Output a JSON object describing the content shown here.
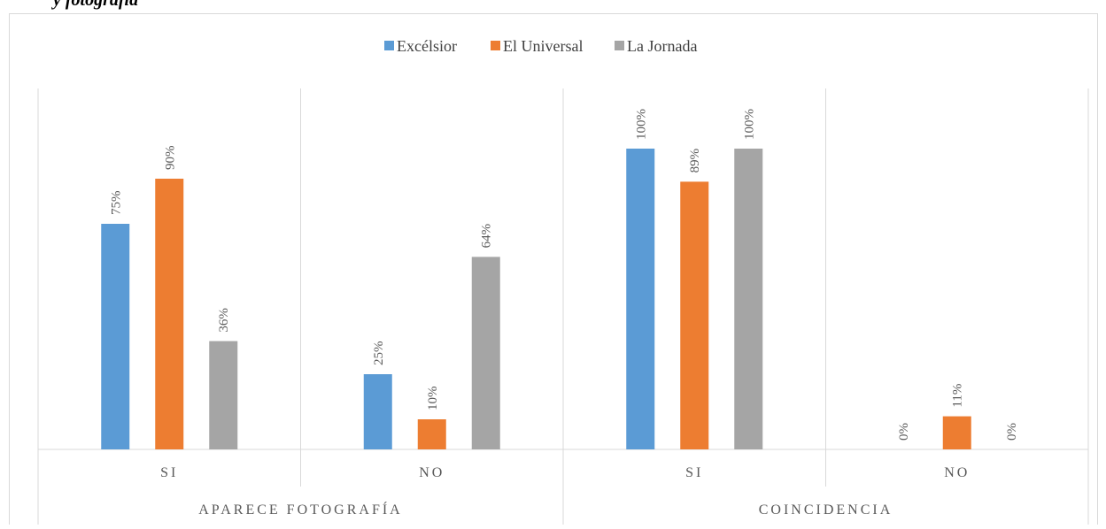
{
  "caption": "y fotografía",
  "chart_data": {
    "type": "bar",
    "groups": [
      {
        "name": "APARECE FOTOGRAFÍA",
        "categories": [
          "SI",
          "NO"
        ]
      },
      {
        "name": "COINCIDENCIA",
        "categories": [
          "SI",
          "NO"
        ]
      }
    ],
    "series": [
      {
        "name": "Excélsior",
        "color": "#5b9bd5",
        "values": [
          75,
          25,
          100,
          0
        ],
        "value_labels": [
          "75%",
          "25%",
          "100%",
          "0%"
        ]
      },
      {
        "name": "El Universal",
        "color": "#ed7d31",
        "values": [
          90,
          10,
          89,
          11
        ],
        "value_labels": [
          "90%",
          "10%",
          "89%",
          "11%"
        ]
      },
      {
        "name": "La Jornada",
        "color": "#a5a5a5",
        "values": [
          36,
          64,
          100,
          0
        ],
        "value_labels": [
          "36%",
          "64%",
          "100%",
          "0%"
        ]
      }
    ],
    "ylim": [
      0,
      120
    ],
    "legend": "top"
  }
}
